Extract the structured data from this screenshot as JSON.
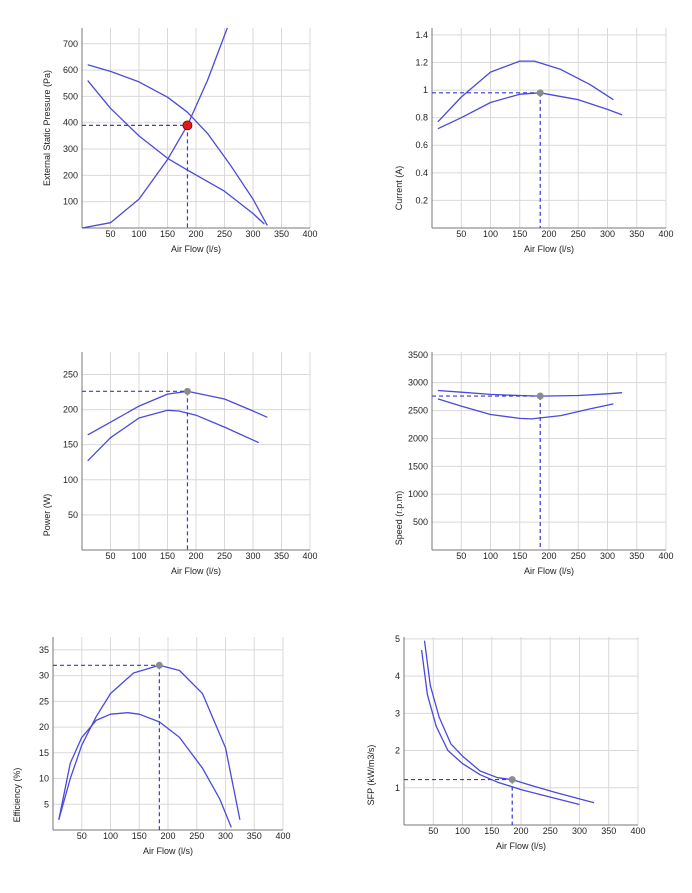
{
  "colors": {
    "curve": "#4a4adc",
    "grid": "#d9d9d9",
    "axis": "#777777",
    "duty_dashed": "#3a3ad0",
    "duty_point_red": "#e01a1a",
    "duty_point_grey": "#8c8c8c"
  },
  "chart_data": [
    {
      "id": "pressure",
      "type": "line",
      "xlabel": "Air Flow (l/s)",
      "ylabel": "External Static Pressure (Pa)",
      "xlim": [
        0,
        400
      ],
      "ylim": [
        0,
        760
      ],
      "xticks": [
        50,
        100,
        150,
        200,
        250,
        300,
        350,
        400
      ],
      "yticks": [
        100,
        200,
        300,
        400,
        500,
        600,
        700
      ],
      "grid": true,
      "series": [
        {
          "x": [
            10,
            50,
            100,
            150,
            185,
            220,
            260,
            300,
            325
          ],
          "y": [
            620,
            595,
            555,
            497,
            440,
            360,
            240,
            110,
            10
          ]
        },
        {
          "x": [
            10,
            50,
            100,
            150,
            185,
            250,
            300,
            320
          ],
          "y": [
            560,
            455,
            350,
            265,
            220,
            140,
            55,
            15
          ]
        },
        {
          "x": [
            0,
            50,
            100,
            150,
            185,
            220,
            255
          ],
          "y": [
            0,
            20,
            110,
            260,
            390,
            560,
            760
          ]
        }
      ],
      "duty_point": {
        "x": 185,
        "y": 390,
        "style": "red"
      }
    },
    {
      "id": "current",
      "type": "line",
      "xlabel": "Air Flow (l/s)",
      "ylabel": "Current (A)",
      "xlim": [
        0,
        400
      ],
      "ylim": [
        0,
        1.45
      ],
      "xticks": [
        50,
        100,
        150,
        200,
        250,
        300,
        350,
        400
      ],
      "yticks": [
        0.2,
        0.4,
        0.6,
        0.8,
        1,
        1.2,
        1.4
      ],
      "grid": true,
      "series": [
        {
          "x": [
            10,
            50,
            100,
            150,
            175,
            220,
            270,
            310
          ],
          "y": [
            0.77,
            0.95,
            1.13,
            1.21,
            1.21,
            1.15,
            1.04,
            0.93
          ]
        },
        {
          "x": [
            10,
            50,
            100,
            150,
            185,
            250,
            300,
            325
          ],
          "y": [
            0.72,
            0.8,
            0.91,
            0.97,
            0.98,
            0.93,
            0.86,
            0.82
          ]
        }
      ],
      "duty_point": {
        "x": 185,
        "y": 0.98,
        "style": "grey"
      }
    },
    {
      "id": "power",
      "type": "line",
      "xlabel": "Air Flow (l/s)",
      "ylabel": "Power (W)",
      "xlim": [
        0,
        400
      ],
      "ylim": [
        0,
        282
      ],
      "xticks": [
        50,
        100,
        150,
        200,
        250,
        300,
        350,
        400
      ],
      "yticks": [
        50,
        100,
        150,
        200,
        250
      ],
      "grid": true,
      "series": [
        {
          "x": [
            10,
            50,
            100,
            150,
            185,
            250,
            300,
            325
          ],
          "y": [
            164,
            182,
            205,
            222,
            226,
            215,
            198,
            189
          ]
        },
        {
          "x": [
            10,
            50,
            100,
            150,
            170,
            200,
            250,
            310
          ],
          "y": [
            127,
            160,
            188,
            199,
            198,
            192,
            175,
            153
          ]
        }
      ],
      "duty_point": {
        "x": 185,
        "y": 226,
        "style": "grey"
      }
    },
    {
      "id": "speed",
      "type": "line",
      "xlabel": "Air Flow (l/s)",
      "ylabel": "Speed (r.p.m)",
      "xlim": [
        0,
        400
      ],
      "ylim": [
        0,
        3550
      ],
      "xticks": [
        50,
        100,
        150,
        200,
        250,
        300,
        350,
        400
      ],
      "yticks": [
        500,
        1000,
        1500,
        2000,
        2500,
        3000,
        3500
      ],
      "grid": true,
      "series": [
        {
          "x": [
            10,
            50,
            100,
            150,
            185,
            250,
            300,
            325
          ],
          "y": [
            2860,
            2830,
            2790,
            2770,
            2760,
            2770,
            2800,
            2820
          ]
        },
        {
          "x": [
            10,
            50,
            100,
            150,
            170,
            220,
            270,
            310
          ],
          "y": [
            2710,
            2580,
            2430,
            2360,
            2350,
            2410,
            2530,
            2620
          ]
        }
      ],
      "duty_point": {
        "x": 185,
        "y": 2760,
        "style": "grey"
      }
    },
    {
      "id": "efficiency",
      "type": "line",
      "xlabel": "Air Flow (l/s)",
      "ylabel": "Efficiency (%)",
      "xlim": [
        0,
        400
      ],
      "ylim": [
        0,
        37.5
      ],
      "xticks": [
        50,
        100,
        150,
        200,
        250,
        300,
        350,
        400
      ],
      "yticks": [
        5,
        10,
        15,
        20,
        25,
        30,
        35
      ],
      "grid": true,
      "series": [
        {
          "x": [
            10,
            30,
            50,
            75,
            100,
            140,
            185,
            220,
            260,
            300,
            325
          ],
          "y": [
            2,
            10,
            16.5,
            22,
            26.5,
            30.5,
            32,
            31,
            26.5,
            16,
            2
          ]
        },
        {
          "x": [
            10,
            30,
            50,
            75,
            100,
            130,
            150,
            185,
            220,
            260,
            290,
            310
          ],
          "y": [
            2,
            13,
            18,
            21.3,
            22.5,
            22.8,
            22.5,
            21,
            18,
            12,
            6,
            0.5
          ]
        }
      ],
      "duty_point": {
        "x": 185,
        "y": 32,
        "style": "grey"
      }
    },
    {
      "id": "sfp",
      "type": "line",
      "xlabel": "Air Flow (l/s)",
      "ylabel": "SFP (kW/m3/s)",
      "xlim": [
        0,
        400
      ],
      "ylim": [
        0,
        5.05
      ],
      "xticks": [
        50,
        100,
        150,
        200,
        250,
        300,
        350,
        400
      ],
      "yticks": [
        1,
        2,
        3,
        4,
        5
      ],
      "grid": true,
      "series": [
        {
          "x": [
            35,
            45,
            60,
            80,
            100,
            130,
            160,
            185,
            220,
            260,
            300,
            325
          ],
          "y": [
            4.95,
            3.75,
            2.9,
            2.18,
            1.85,
            1.45,
            1.27,
            1.22,
            1.05,
            0.87,
            0.7,
            0.6
          ]
        },
        {
          "x": [
            30,
            40,
            55,
            75,
            100,
            130,
            160,
            200,
            250,
            300
          ],
          "y": [
            4.7,
            3.5,
            2.65,
            2.0,
            1.65,
            1.35,
            1.15,
            0.95,
            0.75,
            0.55
          ]
        }
      ],
      "duty_point": {
        "x": 185,
        "y": 1.22,
        "style": "grey"
      }
    }
  ]
}
